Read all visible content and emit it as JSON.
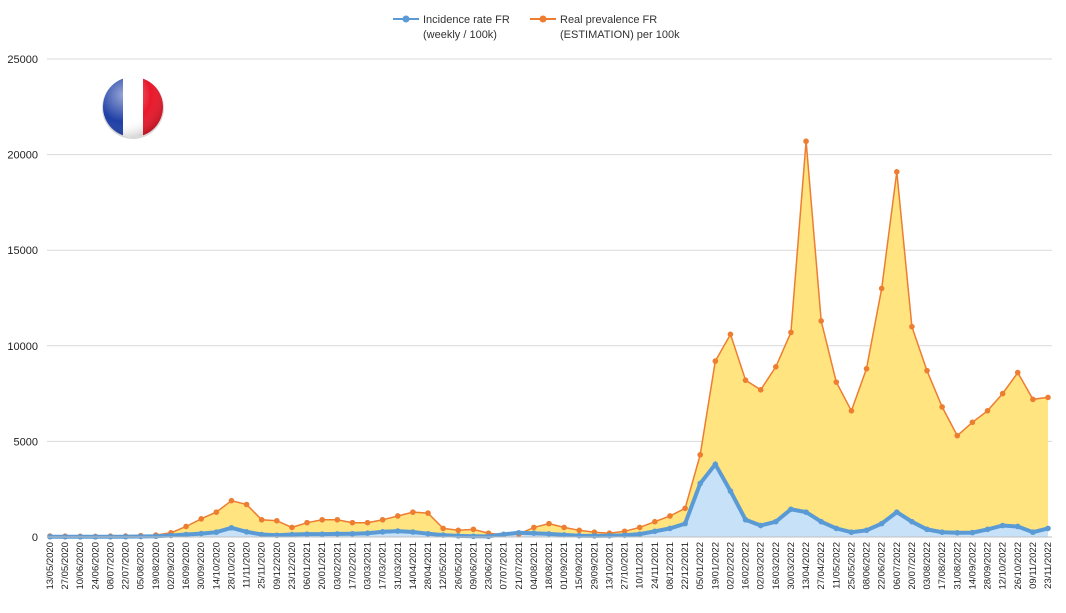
{
  "chart_data": {
    "type": "area",
    "title": "",
    "xlabel": "",
    "ylabel": "",
    "ylim": [
      0,
      25000
    ],
    "y_ticks": [
      "0",
      "5000",
      "10000",
      "15000",
      "20000",
      "25000"
    ],
    "grid": true,
    "legend_position": "top",
    "flag_icon": "france-flag-icon",
    "colors": {
      "incidence_line": "#5b9bd5",
      "incidence_fill": "#c7e1f8",
      "prevalence_line": "#ed7d31",
      "prevalence_fill": "#ffe480",
      "grid": "#d9d9d9"
    },
    "categories": [
      "13/05/2020",
      "27/05/2020",
      "10/06/2020",
      "24/06/2020",
      "08/07/2020",
      "22/07/2020",
      "05/08/2020",
      "19/08/2020",
      "02/09/2020",
      "16/09/2020",
      "30/09/2020",
      "14/10/2020",
      "28/10/2020",
      "11/11/2020",
      "25/11/2020",
      "09/12/2020",
      "23/12/2020",
      "06/01/2021",
      "20/01/2021",
      "03/02/2021",
      "17/02/2021",
      "03/03/2021",
      "17/03/2021",
      "31/03/2021",
      "14/04/2021",
      "28/04/2021",
      "12/05/2021",
      "26/05/2021",
      "09/06/2021",
      "23/06/2021",
      "07/07/2021",
      "21/07/2021",
      "04/08/2021",
      "18/08/2021",
      "01/09/2021",
      "15/09/2021",
      "29/09/2021",
      "13/10/2021",
      "27/10/2021",
      "10/11/2021",
      "24/11/2021",
      "08/12/2021",
      "22/12/2021",
      "05/01/2022",
      "19/01/2022",
      "02/02/2022",
      "16/02/2022",
      "02/03/2022",
      "16/03/2022",
      "30/03/2022",
      "13/04/2022",
      "27/04/2022",
      "11/05/2022",
      "25/05/2022",
      "08/06/2022",
      "22/06/2022",
      "06/07/2022",
      "20/07/2022",
      "03/08/2022",
      "17/08/2022",
      "31/08/2022",
      "14/09/2022",
      "28/09/2022",
      "12/10/2022",
      "26/10/2022",
      "09/11/2022",
      "23/11/2022"
    ],
    "series": [
      {
        "name": "Incidence rate FR (weekly / 100k)",
        "legend_line1": "Incidence rate FR",
        "legend_line2": "(weekly / 100k)",
        "values": [
          15,
          10,
          8,
          8,
          10,
          15,
          25,
          40,
          80,
          130,
          180,
          250,
          480,
          270,
          130,
          90,
          130,
          150,
          150,
          160,
          170,
          200,
          270,
          310,
          260,
          170,
          100,
          60,
          35,
          30,
          140,
          220,
          200,
          160,
          110,
          70,
          60,
          70,
          90,
          150,
          300,
          450,
          700,
          2800,
          3800,
          2400,
          900,
          600,
          800,
          1450,
          1300,
          800,
          450,
          250,
          350,
          700,
          1300,
          800,
          400,
          250,
          220,
          230,
          400,
          600,
          550,
          250,
          450
        ]
      },
      {
        "name": "Real prevalence FR (ESTIMATION) per 100k",
        "legend_line1": "Real prevalence FR",
        "legend_line2": "(ESTIMATION) per 100k",
        "values": [
          50,
          40,
          35,
          30,
          40,
          50,
          70,
          100,
          220,
          550,
          950,
          1300,
          1900,
          1700,
          900,
          850,
          500,
          750,
          900,
          900,
          750,
          750,
          900,
          1100,
          1300,
          1250,
          450,
          350,
          400,
          200,
          120,
          150,
          500,
          700,
          500,
          350,
          250,
          200,
          300,
          500,
          800,
          1100,
          1500,
          4300,
          9200,
          10600,
          8200,
          7700,
          8900,
          10700,
          20700,
          11300,
          8100,
          6600,
          8800,
          13000,
          19100,
          11000,
          8700,
          6800,
          5300,
          6000,
          6600,
          7500,
          8600,
          7200,
          7300
        ]
      }
    ]
  }
}
